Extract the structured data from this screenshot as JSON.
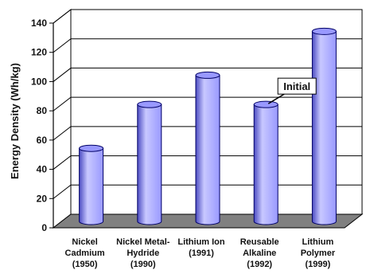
{
  "chart_data": {
    "type": "bar",
    "style": "3d-cylinder",
    "title": "",
    "xlabel": "",
    "ylabel": "Energy Density (Wh/kg)",
    "ylim": [
      0,
      140
    ],
    "yticks": [
      0,
      20,
      40,
      60,
      80,
      100,
      120,
      140
    ],
    "grid": true,
    "legend": "none",
    "categories": [
      [
        "Nickel",
        "Cadmium",
        "(1950)"
      ],
      [
        "Nickel Metal-",
        "Hydride",
        "(1990)"
      ],
      [
        "Lithium Ion",
        "(1991)"
      ],
      [
        "Reusable",
        "Alkaline",
        "(1992)"
      ],
      [
        "Lithium",
        "Polymer",
        "(1999)"
      ]
    ],
    "values": [
      50,
      80,
      100,
      80,
      130
    ],
    "annotations": [
      {
        "text": "Initial",
        "category_index": 3
      }
    ],
    "colors": {
      "bar_fill": "#9999ff",
      "bar_dark": "#4c4cc2",
      "bar_light": "#c8c8ff",
      "bar_outline": "#000066",
      "floor": "#808080",
      "gridline": "#000000",
      "background": "#ffffff"
    }
  }
}
